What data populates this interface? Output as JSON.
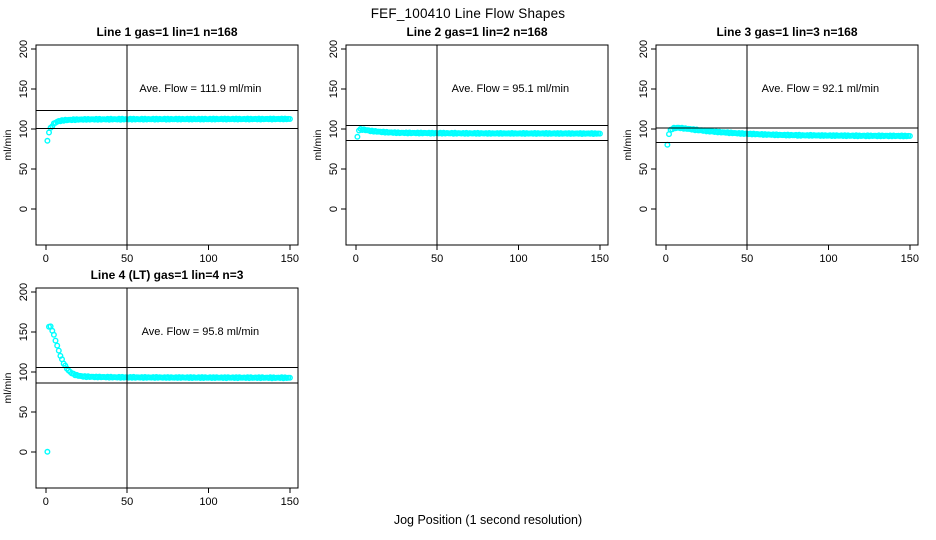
{
  "title": "FEF_100410  Line Flow Shapes",
  "xlabel": "Jog Position (1 second resolution)",
  "colors": {
    "marker": "#00ffff",
    "axis": "#000000",
    "reference_lines": "#000000",
    "background": "#ffffff"
  },
  "chart_data": [
    {
      "type": "scatter",
      "title": "Line 1 gas=1 lin=1 n=168",
      "ylabel": "ml/min",
      "annotation": "Ave. Flow =  111.9  ml/min",
      "annotation_pos": {
        "x": 95,
        "y": 146
      },
      "ave_flow": 111.9,
      "xlim": [
        -6,
        155
      ],
      "ylim": [
        -45,
        205
      ],
      "xticks": [
        0,
        50,
        100,
        150
      ],
      "yticks": [
        0,
        50,
        100,
        150,
        200
      ],
      "vline_x": 50,
      "hlines": [
        123.1,
        100.7
      ],
      "point_step": 1,
      "points": [
        [
          1,
          85
        ],
        [
          2,
          96
        ],
        [
          3,
          101
        ],
        [
          4,
          104
        ],
        [
          5,
          106.5
        ],
        [
          6,
          108
        ],
        [
          7,
          109
        ],
        [
          8,
          109.8
        ],
        [
          10,
          110.6
        ],
        [
          13,
          111.2
        ],
        [
          17,
          111.6
        ],
        [
          25,
          112
        ],
        [
          40,
          112.2
        ],
        [
          60,
          112.3
        ],
        [
          150,
          112.5
        ]
      ]
    },
    {
      "type": "scatter",
      "title": "Line 2 gas=1 lin=2 n=168",
      "ylabel": "ml/min",
      "annotation": "Ave. Flow =  95.1  ml/min",
      "annotation_pos": {
        "x": 95,
        "y": 146
      },
      "ave_flow": 95.1,
      "xlim": [
        -6,
        155
      ],
      "ylim": [
        -45,
        205
      ],
      "xticks": [
        0,
        50,
        100,
        150
      ],
      "yticks": [
        0,
        50,
        100,
        150,
        200
      ],
      "vline_x": 50,
      "hlines": [
        104.6,
        85.6
      ],
      "point_step": 1,
      "points": [
        [
          1,
          90
        ],
        [
          2,
          98.5
        ],
        [
          3,
          99.5
        ],
        [
          4,
          99.3
        ],
        [
          5,
          99
        ],
        [
          7,
          98.3
        ],
        [
          9,
          97.7
        ],
        [
          12,
          97
        ],
        [
          16,
          96.3
        ],
        [
          20,
          95.8
        ],
        [
          26,
          95.3
        ],
        [
          35,
          95
        ],
        [
          50,
          94.8
        ],
        [
          80,
          94.5
        ],
        [
          120,
          94.4
        ],
        [
          150,
          94.3
        ]
      ]
    },
    {
      "type": "scatter",
      "title": "Line 3 gas=1 lin=3 n=168",
      "ylabel": "ml/min",
      "annotation": "Ave. Flow =  92.1  ml/min",
      "annotation_pos": {
        "x": 95,
        "y": 146
      },
      "ave_flow": 92.1,
      "xlim": [
        -6,
        155
      ],
      "ylim": [
        -45,
        205
      ],
      "xticks": [
        0,
        50,
        100,
        150
      ],
      "yticks": [
        0,
        50,
        100,
        150,
        200
      ],
      "vline_x": 50,
      "hlines": [
        101.3,
        82.9
      ],
      "point_step": 1,
      "points": [
        [
          1,
          80
        ],
        [
          2,
          94
        ],
        [
          3,
          98.5
        ],
        [
          4,
          100.3
        ],
        [
          5,
          101
        ],
        [
          7,
          101.5
        ],
        [
          9,
          101.3
        ],
        [
          12,
          100.6
        ],
        [
          16,
          99.6
        ],
        [
          20,
          98.6
        ],
        [
          25,
          97.5
        ],
        [
          30,
          96.6
        ],
        [
          35,
          95.8
        ],
        [
          40,
          95.1
        ],
        [
          45,
          94.5
        ],
        [
          50,
          94
        ],
        [
          60,
          93.2
        ],
        [
          70,
          92.6
        ],
        [
          80,
          92.2
        ],
        [
          100,
          91.8
        ],
        [
          120,
          91.5
        ],
        [
          150,
          91.3
        ]
      ]
    },
    {
      "type": "scatter",
      "title": "Line 4 (LT) gas=1 lin=4 n=3",
      "ylabel": "ml/min",
      "annotation": "Ave. Flow =  95.8  ml/min",
      "annotation_pos": {
        "x": 95,
        "y": 146
      },
      "ave_flow": 95.8,
      "xlim": [
        -6,
        155
      ],
      "ylim": [
        -45,
        205
      ],
      "xticks": [
        0,
        50,
        100,
        150
      ],
      "yticks": [
        0,
        50,
        100,
        150,
        200
      ],
      "vline_x": 50,
      "hlines": [
        105.4,
        86.2
      ],
      "point_step": 1,
      "points": [
        [
          1,
          0
        ],
        [
          2,
          157
        ],
        [
          3,
          156.5
        ],
        [
          4,
          152
        ],
        [
          5,
          146
        ],
        [
          6,
          139.5
        ],
        [
          7,
          133
        ],
        [
          8,
          126.5
        ],
        [
          9,
          120.5
        ],
        [
          10,
          115.5
        ],
        [
          11,
          111
        ],
        [
          12,
          107.5
        ],
        [
          13,
          104.5
        ],
        [
          14,
          102
        ],
        [
          15,
          100
        ],
        [
          16,
          98.6
        ],
        [
          17,
          97.5
        ],
        [
          18,
          96.6
        ],
        [
          19,
          95.9
        ],
        [
          20,
          95.4
        ],
        [
          22,
          94.7
        ],
        [
          25,
          94.2
        ],
        [
          30,
          93.8
        ],
        [
          40,
          93.5
        ],
        [
          60,
          93.2
        ],
        [
          100,
          93
        ],
        [
          150,
          92.8
        ]
      ]
    }
  ]
}
